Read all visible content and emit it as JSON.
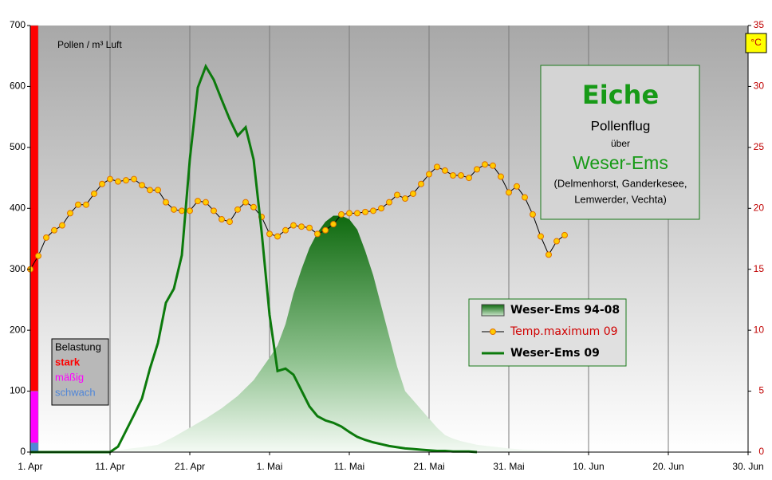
{
  "chart_data": {
    "type": "combo",
    "y_label": "Pollen / m³  Luft",
    "y2_label": "°C",
    "xlim": [
      0,
      90
    ],
    "xticks": [
      {
        "value": 0,
        "label": "1. Apr"
      },
      {
        "value": 10,
        "label": "11. Apr"
      },
      {
        "value": 20,
        "label": "21. Apr"
      },
      {
        "value": 30,
        "label": "1. Mai"
      },
      {
        "value": 40,
        "label": "11. Mai"
      },
      {
        "value": 50,
        "label": "21. Mai"
      },
      {
        "value": 60,
        "label": "31. Mai"
      },
      {
        "value": 70,
        "label": "10. Jun"
      },
      {
        "value": 80,
        "label": "20. Jun"
      },
      {
        "value": 90,
        "label": "30. Jun"
      }
    ],
    "ylim": [
      0,
      700
    ],
    "yticks": [
      0,
      100,
      200,
      300,
      400,
      500,
      600,
      700
    ],
    "y2lim": [
      0,
      35
    ],
    "y2ticks": [
      0,
      5,
      10,
      15,
      20,
      25,
      30,
      35
    ],
    "grid": "x",
    "series": [
      {
        "name": "Weser-Ems 94-08",
        "kind": "area",
        "color": "#1f7a1f",
        "x": [
          0,
          10,
          12,
          14,
          16,
          18,
          20,
          22,
          24,
          26,
          28,
          30,
          31,
          32,
          33,
          34,
          35,
          36,
          37,
          38,
          39,
          40,
          41,
          42,
          43,
          44,
          45,
          46,
          47,
          48,
          49,
          50,
          51,
          52,
          53,
          54,
          56,
          58,
          60,
          62,
          64,
          66,
          69
        ],
        "values": [
          0,
          0,
          5,
          8,
          12,
          25,
          40,
          55,
          72,
          92,
          118,
          155,
          175,
          210,
          260,
          300,
          335,
          360,
          378,
          388,
          388,
          382,
          365,
          330,
          290,
          240,
          190,
          140,
          100,
          85,
          70,
          55,
          40,
          28,
          22,
          18,
          12,
          9,
          6,
          4,
          3,
          2,
          0
        ]
      },
      {
        "name": "Temp.maximum 09",
        "kind": "line-markers",
        "axis": "y2",
        "color": "#ffcc00",
        "line_color": "#000000",
        "x": [
          0,
          1,
          2,
          3,
          4,
          5,
          6,
          7,
          8,
          9,
          10,
          11,
          12,
          13,
          14,
          15,
          16,
          17,
          18,
          19,
          20,
          21,
          22,
          23,
          24,
          25,
          26,
          27,
          28,
          29,
          30,
          31,
          32,
          33,
          34,
          35,
          36,
          37,
          38,
          39,
          40,
          41,
          42,
          43,
          44,
          45,
          46,
          47,
          48,
          49,
          50,
          51,
          52,
          53,
          54,
          55,
          56,
          57,
          58,
          59,
          60,
          61,
          62,
          63,
          64,
          65,
          66,
          67
        ],
        "values": [
          15.0,
          16.1,
          17.6,
          18.2,
          18.6,
          19.6,
          20.3,
          20.3,
          21.2,
          22.0,
          22.4,
          22.2,
          22.3,
          22.4,
          21.9,
          21.5,
          21.5,
          20.5,
          19.9,
          19.8,
          19.8,
          20.6,
          20.5,
          19.8,
          19.1,
          18.9,
          19.9,
          20.5,
          20.1,
          19.3,
          17.9,
          17.7,
          18.2,
          18.6,
          18.5,
          18.4,
          17.9,
          18.2,
          18.7,
          19.5,
          19.6,
          19.6,
          19.7,
          19.8,
          20.0,
          20.5,
          21.1,
          20.8,
          21.2,
          22.0,
          22.8,
          23.4,
          23.1,
          22.7,
          22.7,
          22.5,
          23.2,
          23.6,
          23.5,
          22.6,
          21.3,
          21.8,
          20.9,
          19.5,
          17.7,
          16.2,
          17.3,
          17.8
        ]
      },
      {
        "name": "Weser-Ems 09",
        "kind": "line",
        "color": "#0c7a0c",
        "x": [
          0,
          10,
          11,
          12,
          13,
          14,
          15,
          16,
          17,
          18,
          19,
          20,
          21,
          22,
          23,
          24,
          25,
          26,
          27,
          28,
          29,
          30,
          31,
          32,
          33,
          34,
          35,
          36,
          37,
          38,
          39,
          40,
          41,
          42,
          43,
          44,
          45,
          46,
          47,
          48,
          49,
          50,
          51,
          52,
          53,
          54,
          55,
          56
        ],
        "values": [
          0,
          0,
          9,
          35,
          61,
          88,
          137,
          179,
          245,
          268,
          323,
          480,
          598,
          633,
          611,
          578,
          546,
          519,
          533,
          480,
          362,
          225,
          133,
          137,
          127,
          101,
          75,
          59,
          52,
          48,
          42,
          33,
          25,
          20,
          16,
          13,
          10,
          8,
          6,
          5,
          4,
          3,
          2,
          2,
          1,
          1,
          1,
          0
        ]
      }
    ],
    "belastung": {
      "title": "Belastung",
      "levels": [
        {
          "name": "stark",
          "color": "#ff0000",
          "from": 100,
          "to": 700
        },
        {
          "name": "mäßig",
          "color": "#ff00ff",
          "from": 15,
          "to": 100
        },
        {
          "name": "schwach",
          "color": "#4f86d8",
          "from": 0,
          "to": 15
        }
      ]
    },
    "info": {
      "title": "Eiche",
      "line1": "Pollenflug",
      "line2": "über",
      "region": "Weser-Ems",
      "line3": "(Delmenhorst, Ganderkesee,",
      "line4": "Lemwerder, Vechta)"
    }
  }
}
